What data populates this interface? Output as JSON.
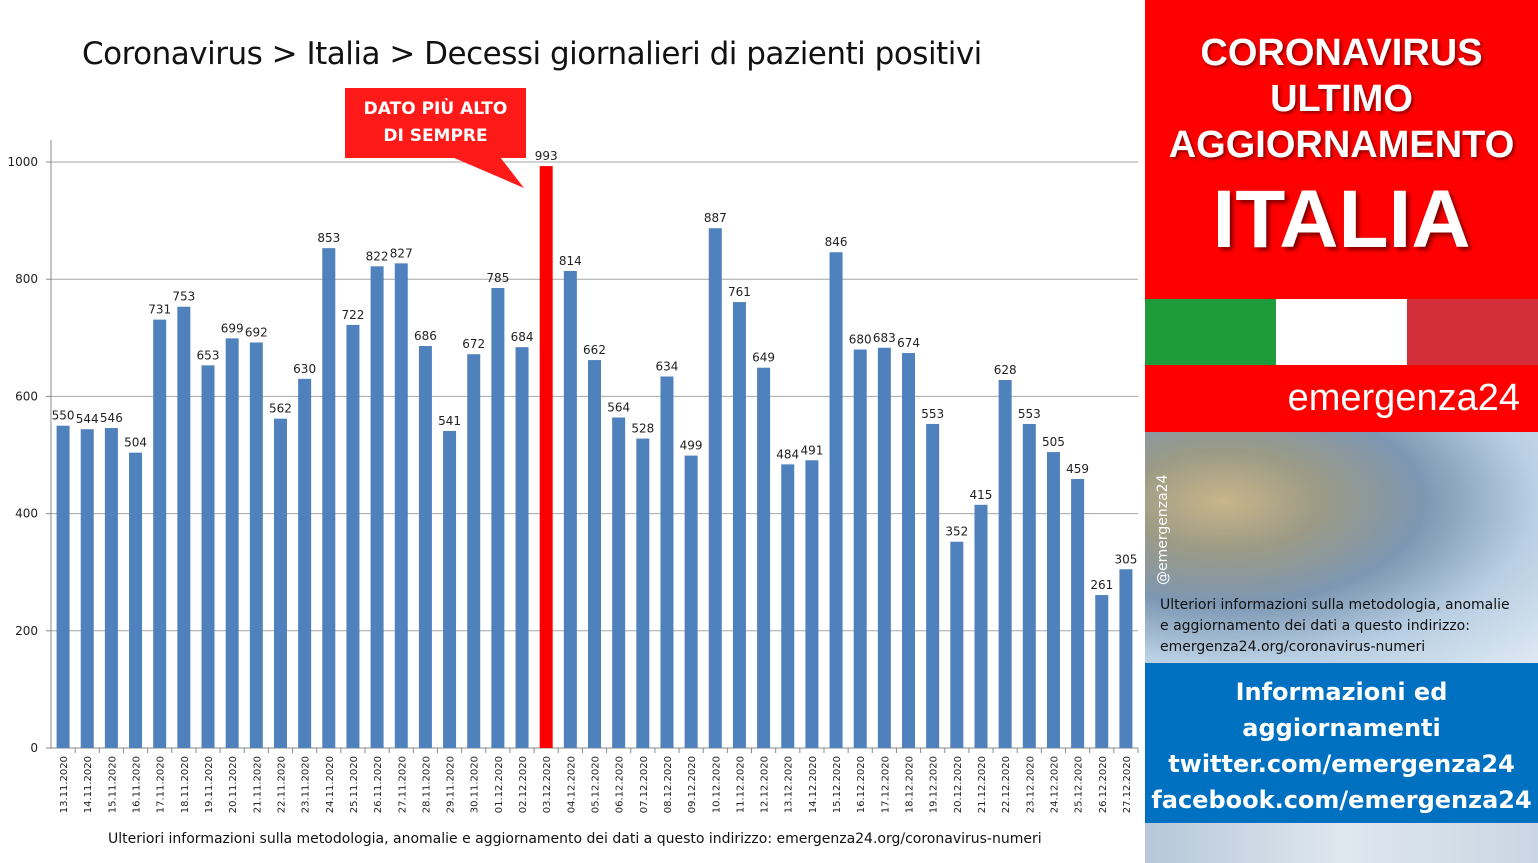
{
  "title": "Coronavirus > Italia > Decessi giornalieri di pazienti positivi",
  "callout": {
    "line1": "DATO PIÙ ALTO",
    "line2": "DI SEMPRE"
  },
  "footer": "Ulteriori informazioni sulla metodologia, anomalie e aggiornamento dei dati a questo indirizzo: emergenza24.org/coronavirus-numeri",
  "side": {
    "headline": [
      "CORONAVIRUS",
      "ULTIMO",
      "AGGIORNAMENTO"
    ],
    "country": "ITALIA",
    "flag_colors": [
      "#1e9b3a",
      "#ffffff",
      "#d32f3a"
    ],
    "brand": "emergenza24",
    "handle": "@emergenza24",
    "info": [
      "Ulteriori informazioni sulla metodologia, anomalie",
      "e aggiornamento dei dati a questo indirizzo:",
      "emergenza24.org/coronavirus-numeri"
    ],
    "blue": [
      "Informazioni ed",
      "aggiornamenti",
      "twitter.com/emergenza24",
      "facebook.com/emergenza24"
    ]
  },
  "colors": {
    "bar": "#4f81bd",
    "highlight": "#ff0000",
    "grid": "#a6a6a6",
    "accent_red": "#ff0000",
    "accent_blue": "#0070c0"
  },
  "chart_data": {
    "type": "bar",
    "title": "Coronavirus > Italia > Decessi giornalieri di pazienti positivi",
    "categories": [
      "13.11.2020",
      "14.11.2020",
      "15.11.2020",
      "16.11.2020",
      "17.11.2020",
      "18.11.2020",
      "19.11.2020",
      "20.11.2020",
      "21.11.2020",
      "22.11.2020",
      "23.11.2020",
      "24.11.2020",
      "25.11.2020",
      "26.11.2020",
      "27.11.2020",
      "28.11.2020",
      "29.11.2020",
      "30.11.2020",
      "01.12.2020",
      "02.12.2020",
      "03.12.2020",
      "04.12.2020",
      "05.12.2020",
      "06.12.2020",
      "07.12.2020",
      "08.12.2020",
      "09.12.2020",
      "10.12.2020",
      "11.12.2020",
      "12.12.2020",
      "13.12.2020",
      "14.12.2020",
      "15.12.2020",
      "16.12.2020",
      "17.12.2020",
      "18.12.2020",
      "19.12.2020",
      "20.12.2020",
      "21.12.2020",
      "22.12.2020",
      "23.12.2020",
      "24.12.2020",
      "25.12.2020",
      "26.12.2020",
      "27.12.2020"
    ],
    "values": [
      550,
      544,
      546,
      504,
      731,
      753,
      653,
      699,
      692,
      562,
      630,
      853,
      722,
      822,
      827,
      686,
      541,
      672,
      785,
      684,
      993,
      814,
      662,
      564,
      528,
      634,
      499,
      887,
      761,
      649,
      484,
      491,
      846,
      680,
      683,
      674,
      553,
      352,
      415,
      628,
      553,
      505,
      459,
      261,
      305
    ],
    "highlight_category": "03.12.2020",
    "ylim": [
      0,
      1000
    ],
    "yticks": [
      0,
      200,
      400,
      600,
      800,
      1000
    ],
    "grid": true,
    "legend": "none"
  }
}
